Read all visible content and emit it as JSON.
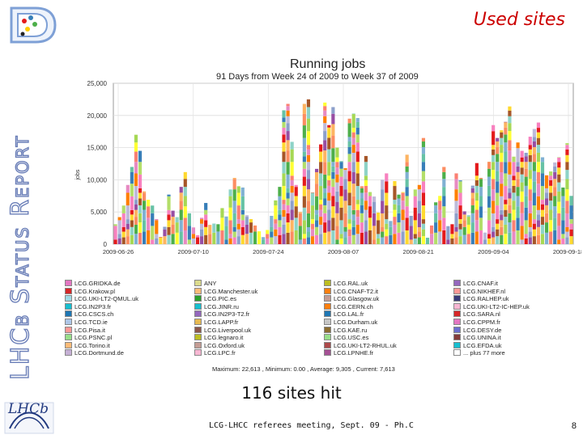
{
  "slide": {
    "title": "Used sites",
    "side_title": "LHCb Status Report",
    "caption": "116 sites hit",
    "footer": "LCG-LHCC referees meeting, Sept. 09 - Ph.C",
    "page_number": "8",
    "logo_text": "LHCb",
    "logo_subtext": "LHCb"
  },
  "chart_data": {
    "type": "bar",
    "title": "Running jobs",
    "subtitle": "91 Days from Week 24 of 2009 to Week 37 of 2009",
    "ylabel": "jobs",
    "ylim": [
      0,
      25000
    ],
    "yticks": [
      "0",
      "5,000",
      "10,000",
      "15,000",
      "20,000",
      "25,000"
    ],
    "xtick_labels": [
      "2009-06-26",
      "2009-07-10",
      "2009-07-24",
      "2009-08-07",
      "2009-08-21",
      "2009-09-04",
      "2009-09-18"
    ],
    "stats": "Maximum: 22,613 , Minimum: 0.00 , Average: 9,305 , Current: 7,613",
    "totals": [
      3100,
      4200,
      6000,
      9200,
      12000,
      17000,
      14500,
      8200,
      6900,
      6000,
      3900,
      1100,
      2700,
      7700,
      5200,
      4200,
      8900,
      11200,
      4800,
      2600,
      1400,
      4100,
      6400,
      3000,
      3200,
      3100,
      5600,
      4300,
      8500,
      10300,
      9000,
      8800,
      4500,
      3900,
      2900,
      2000,
      1100,
      2200,
      4400,
      6800,
      8900,
      20800,
      21800,
      15900,
      9200,
      5000,
      21800,
      22500,
      8000,
      11700,
      15500,
      22000,
      18500,
      21300,
      15000,
      12900,
      11800,
      19500,
      20300,
      19600,
      9000,
      13700,
      8100,
      7400,
      4900,
      10000,
      11000,
      3600,
      9800,
      7700,
      8100,
      13900,
      4400,
      8500,
      9200,
      16500,
      1000,
      2900,
      6500,
      7500,
      12000,
      2800,
      3100,
      11000,
      9900,
      5100,
      4500,
      9100,
      12600,
      10300,
      1800,
      12800,
      18500,
      16500,
      17700,
      19000,
      21400,
      13600,
      15800,
      14500,
      14200,
      16700,
      17900,
      18900,
      13500,
      10700,
      11300,
      12700,
      13500,
      8800,
      15700,
      7500
    ],
    "series_colors": [
      "#e41a1c",
      "#377eb8",
      "#4daf4a",
      "#984ea3",
      "#ff7f00",
      "#ffff33",
      "#a65628",
      "#f781bf",
      "#66c2a5",
      "#fc8d62",
      "#8da0cb",
      "#e78ac3",
      "#a6d854",
      "#ffd92f",
      "#b3de69",
      "#80b1d3",
      "#fdb462",
      "#bebada",
      "#fb8072",
      "#8dd3c7"
    ],
    "legend": [
      {
        "label": "LCG.GRIDKA.de",
        "color": "#e377c2"
      },
      {
        "label": "LCG.Krakow.pl",
        "color": "#d62728"
      },
      {
        "label": "LCG.UKI-LT2-QMUL.uk",
        "color": "#9edae5"
      },
      {
        "label": "LCG.IN2P3.fr",
        "color": "#17becf"
      },
      {
        "label": "LCG.CSCS.ch",
        "color": "#1f77b4"
      },
      {
        "label": "LCG.TCD.ie",
        "color": "#aec7e8"
      },
      {
        "label": "LCG.Pisa.it",
        "color": "#ff9896"
      },
      {
        "label": "LCG.PSNC.pl",
        "color": "#98df8a"
      },
      {
        "label": "LCG.Torino.it",
        "color": "#ffbb78"
      },
      {
        "label": "LCG.Dortmund.de",
        "color": "#c5b0d5"
      },
      {
        "label": "ANY",
        "color": "#dbdb8d"
      },
      {
        "label": "LCG.Manchester.uk",
        "color": "#ffbb78"
      },
      {
        "label": "LCG.PIC.es",
        "color": "#2ca02c"
      },
      {
        "label": "LCG.JINR.ru",
        "color": "#17becf"
      },
      {
        "label": "LCG.IN2P3-T2.fr",
        "color": "#9467bd"
      },
      {
        "label": "LCG.LAPP.fr",
        "color": "#e7ba52"
      },
      {
        "label": "LCG.Liverpool.uk",
        "color": "#8c564b"
      },
      {
        "label": "LCG.legnaro.it",
        "color": "#bcbd22"
      },
      {
        "label": "LCG.Oxford.uk",
        "color": "#c49c94"
      },
      {
        "label": "LCG.LPC.fr",
        "color": "#f7b6d2"
      },
      {
        "label": "LCG.RAL.uk",
        "color": "#bcbd22"
      },
      {
        "label": "LCG.CNAF-T2.it",
        "color": "#ff7f0e"
      },
      {
        "label": "LCG.Glasgow.uk",
        "color": "#c49c94"
      },
      {
        "label": "LCG.CERN.ch",
        "color": "#ff7f0e"
      },
      {
        "label": "LCG.LAL.fr",
        "color": "#1f77b4"
      },
      {
        "label": "LCG.Durham.uk",
        "color": "#c7c7c7"
      },
      {
        "label": "LCG.KAE.ru",
        "color": "#8c6d31"
      },
      {
        "label": "LCG.USC.es",
        "color": "#98df8a"
      },
      {
        "label": "LCG.UKI-LT2-RHUL.uk",
        "color": "#ad494a"
      },
      {
        "label": "LCG.LPNHE.fr",
        "color": "#a55194"
      },
      {
        "label": "LCG.CNAF.it",
        "color": "#9467bd"
      },
      {
        "label": "LCG.NIKHEF.nl",
        "color": "#ff9896"
      },
      {
        "label": "LCG.RALHEP.uk",
        "color": "#393b79"
      },
      {
        "label": "LCG.UKI-LT2-IC-HEP.uk",
        "color": "#f7b6d2"
      },
      {
        "label": "LCG.SARA.nl",
        "color": "#d62728"
      },
      {
        "label": "LCG.CPPM.fr",
        "color": "#e377c2"
      },
      {
        "label": "LCG.DESY.de",
        "color": "#6b6ecf"
      },
      {
        "label": "LCG.UNINA.it",
        "color": "#843c39"
      },
      {
        "label": "LCG.EFDA.uk",
        "color": "#17becf"
      },
      {
        "label": "... plus 77 more",
        "color": "#ffffff"
      }
    ]
  }
}
